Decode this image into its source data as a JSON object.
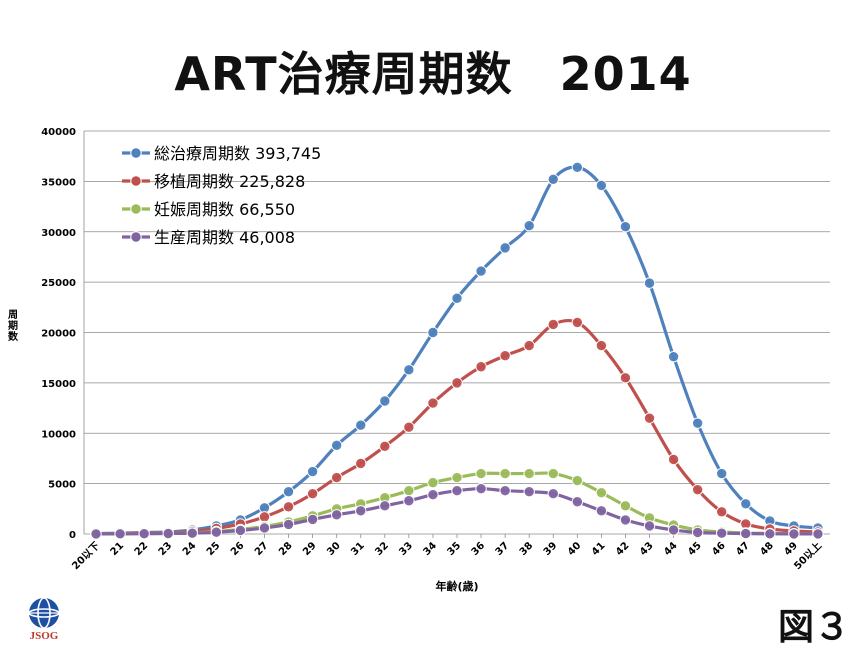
{
  "title": "ART治療周期数　2014",
  "figure_label": "図３",
  "logo_text": "JSOG",
  "chart_data": {
    "type": "line",
    "ylabel": "周期数",
    "xlabel": "年齢(歳)",
    "ylim": [
      0,
      40000
    ],
    "yticks": [
      0,
      5000,
      10000,
      15000,
      20000,
      25000,
      30000,
      35000,
      40000
    ],
    "grid": true,
    "legend_position": "top-left",
    "categories": [
      "20以下",
      "21",
      "22",
      "23",
      "24",
      "25",
      "26",
      "27",
      "28",
      "29",
      "30",
      "31",
      "32",
      "33",
      "34",
      "35",
      "36",
      "37",
      "38",
      "39",
      "40",
      "41",
      "42",
      "43",
      "44",
      "45",
      "46",
      "47",
      "48",
      "49",
      "50以上"
    ],
    "series": [
      {
        "name": "総治療周期数 393,745",
        "color": "#4f81bd",
        "values": [
          50,
          80,
          150,
          200,
          400,
          800,
          1400,
          2600,
          4200,
          6200,
          8800,
          10800,
          13200,
          16300,
          20000,
          23400,
          26100,
          28400,
          30600,
          35200,
          36400,
          34600,
          30500,
          24900,
          17600,
          11000,
          6000,
          3000,
          1300,
          800,
          600
        ]
      },
      {
        "name": "移植周期数 225,828",
        "color": "#c0504d",
        "values": [
          30,
          50,
          90,
          120,
          250,
          550,
          1000,
          1700,
          2700,
          4000,
          5600,
          7000,
          8700,
          10600,
          13000,
          15000,
          16600,
          17700,
          18700,
          20800,
          21000,
          18700,
          15500,
          11500,
          7400,
          4400,
          2200,
          1000,
          500,
          300,
          200
        ]
      },
      {
        "name": "妊娠周期数 66,550",
        "color": "#9bbb59",
        "values": [
          10,
          20,
          40,
          60,
          100,
          250,
          450,
          750,
          1200,
          1800,
          2500,
          3000,
          3600,
          4300,
          5100,
          5600,
          6000,
          6000,
          6000,
          6000,
          5300,
          4100,
          2800,
          1600,
          900,
          400,
          200,
          100,
          50,
          30,
          20
        ]
      },
      {
        "name": "生産周期数 46,008",
        "color": "#8064a2",
        "values": [
          10,
          15,
          30,
          50,
          80,
          180,
          350,
          600,
          950,
          1450,
          1900,
          2300,
          2800,
          3300,
          3900,
          4300,
          4500,
          4300,
          4200,
          4000,
          3200,
          2300,
          1400,
          800,
          400,
          150,
          80,
          40,
          20,
          10,
          10
        ]
      }
    ]
  }
}
